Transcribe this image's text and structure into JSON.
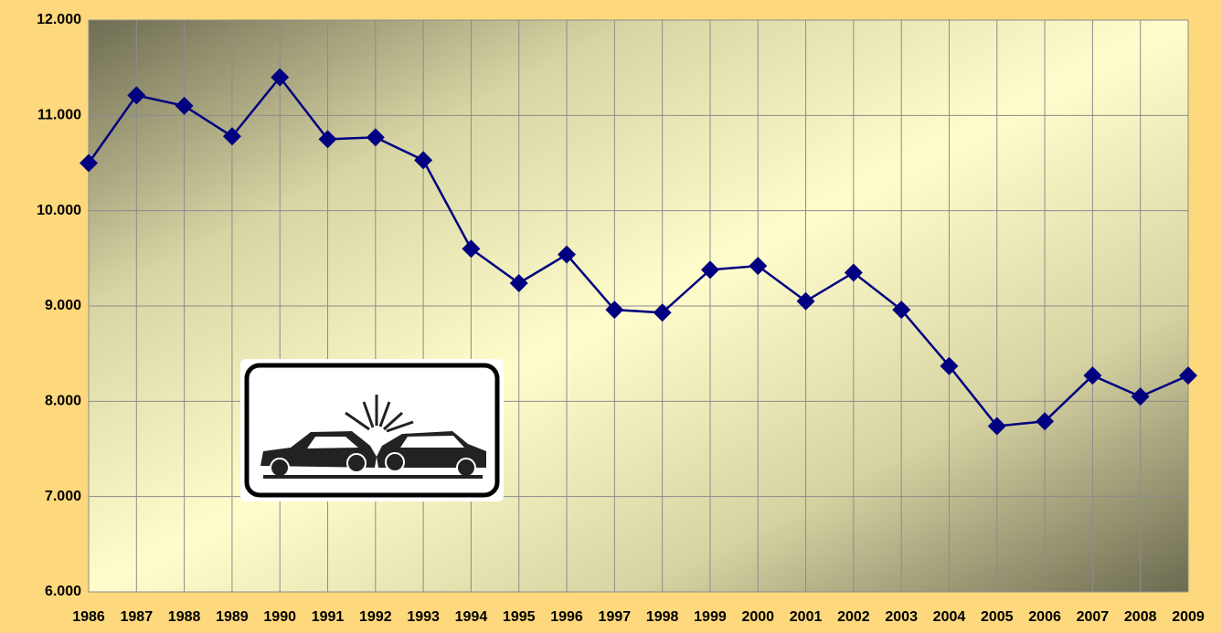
{
  "chart_data": {
    "type": "line",
    "categories": [
      "1986",
      "1987",
      "1988",
      "1989",
      "1990",
      "1991",
      "1992",
      "1993",
      "1994",
      "1995",
      "1996",
      "1997",
      "1998",
      "1999",
      "2000",
      "2001",
      "2002",
      "2003",
      "2004",
      "2005",
      "2006",
      "2007",
      "2008",
      "2009"
    ],
    "values": [
      10500,
      11210,
      11100,
      10780,
      11400,
      10750,
      10770,
      10530,
      9600,
      9240,
      9540,
      8960,
      8930,
      9380,
      9420,
      9050,
      9350,
      8960,
      8370,
      7740,
      7790,
      8270,
      8050,
      8270
    ],
    "color": "#000080",
    "ylim": [
      6000,
      12000
    ],
    "yticks": [
      {
        "value": 6000,
        "label": "6.000"
      },
      {
        "value": 7000,
        "label": "7.000"
      },
      {
        "value": 8000,
        "label": "8.000"
      },
      {
        "value": 9000,
        "label": "9.000"
      },
      {
        "value": 10000,
        "label": "10.000"
      },
      {
        "value": 11000,
        "label": "11.000"
      },
      {
        "value": 12000,
        "label": "12.000"
      }
    ],
    "grid": true
  }
}
